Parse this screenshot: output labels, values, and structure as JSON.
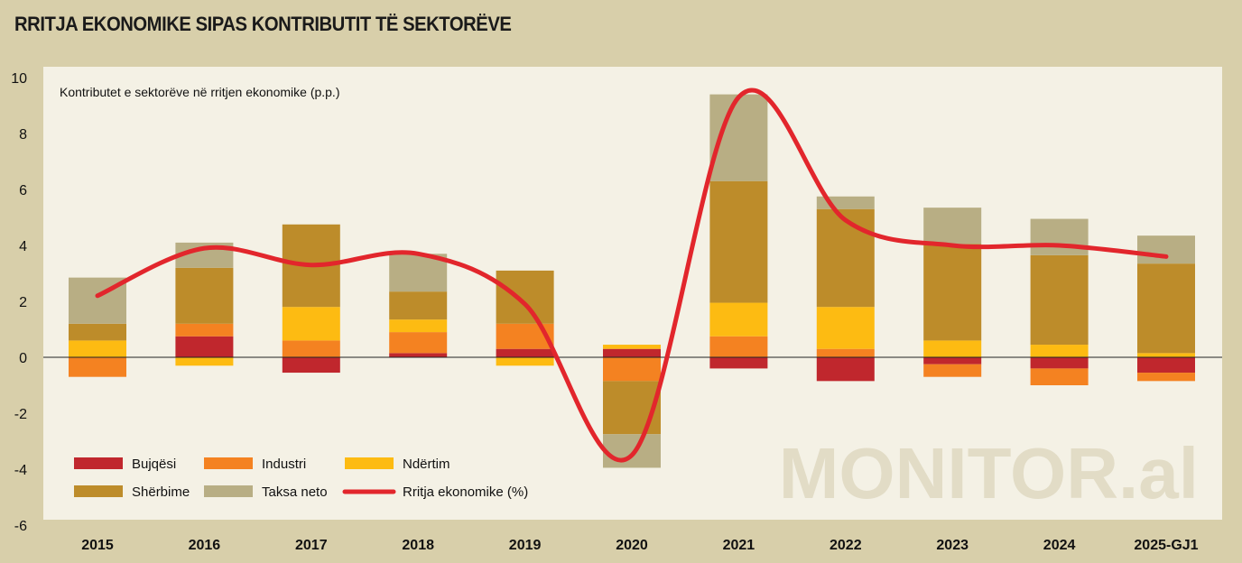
{
  "page_title": "RRITJA EKONOMIKE SIPAS KONTRIBUTIT TË SEKTORËVE",
  "watermark": "MONITOR.al",
  "chart_data": {
    "type": "bar",
    "stacked": true,
    "title": "Kontributet e sektorëve në rritjen ekonomike (p.p.)",
    "xlabel": "",
    "ylabel": "",
    "ylim": [
      -6,
      10
    ],
    "yticks": [
      -6,
      -4,
      -2,
      0,
      2,
      4,
      6,
      8,
      10
    ],
    "categories": [
      "2015",
      "2016",
      "2017",
      "2018",
      "2019",
      "2020",
      "2021",
      "2022",
      "2023",
      "2024",
      "2025-GJ1"
    ],
    "series": [
      {
        "name": "Bujqësi",
        "color": "#c0272d",
        "values": [
          0.0,
          0.75,
          -0.55,
          0.15,
          0.3,
          0.3,
          -0.4,
          -0.85,
          -0.25,
          -0.4,
          -0.55
        ]
      },
      {
        "name": "Industri",
        "color": "#f48221",
        "values": [
          -0.7,
          0.45,
          0.6,
          0.75,
          0.9,
          -0.85,
          0.75,
          0.3,
          -0.45,
          -0.6,
          -0.3
        ]
      },
      {
        "name": "Ndërtim",
        "color": "#fdbb12",
        "values": [
          0.6,
          -0.3,
          1.2,
          0.45,
          -0.3,
          0.15,
          1.2,
          1.5,
          0.6,
          0.45,
          0.15
        ]
      },
      {
        "name": "Shërbime",
        "color": "#bd8c2a",
        "values": [
          0.6,
          2.0,
          2.95,
          1.0,
          1.9,
          -1.9,
          4.35,
          3.5,
          3.45,
          3.2,
          3.2
        ]
      },
      {
        "name": "Taksa neto",
        "color": "#b8ae84",
        "values": [
          1.65,
          0.9,
          0.0,
          1.35,
          0.0,
          -1.2,
          3.1,
          0.45,
          1.3,
          1.3,
          1.0
        ]
      }
    ],
    "line": {
      "name": "Rritja ekonomike (%)",
      "color": "#e2262c",
      "values": [
        2.2,
        3.9,
        3.3,
        3.7,
        1.9,
        -3.5,
        9.3,
        4.9,
        4.0,
        4.0,
        3.6
      ]
    },
    "legend_position": "bottom-left"
  }
}
